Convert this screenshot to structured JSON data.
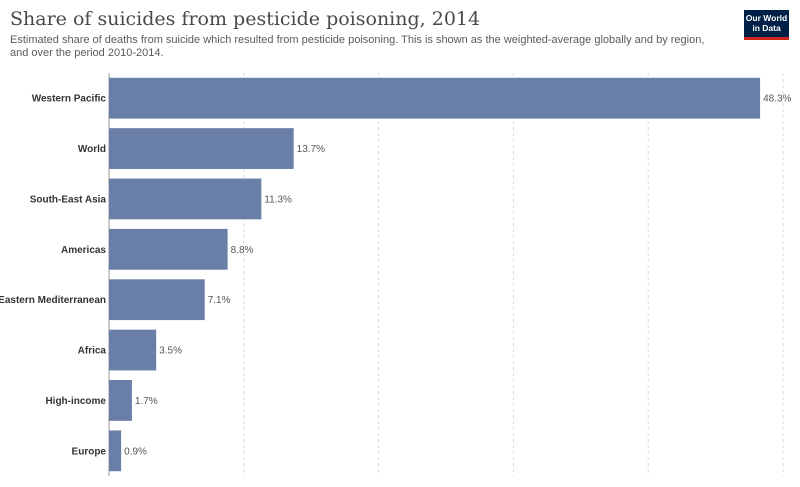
{
  "title": "Share of suicides from pesticide poisoning, 2014",
  "subtitle": "Estimated share of deaths from suicide which resulted from pesticide poisoning. This is shown as the weighted-average globally and by region, and over the period 2010-2014.",
  "logo": {
    "line1": "Our World",
    "line2": "in Data"
  },
  "colors": {
    "bar": "#6a7fa8",
    "grid": "#d8d8d8",
    "axis": "#999999"
  },
  "chart_data": {
    "type": "bar",
    "orientation": "horizontal",
    "categories": [
      "Western Pacific",
      "World",
      "South-East Asia",
      "Americas",
      "Eastern Mediterranean",
      "Africa",
      "High-income",
      "Europe"
    ],
    "values": [
      48.3,
      13.7,
      11.3,
      8.8,
      7.1,
      3.5,
      1.7,
      0.9
    ],
    "value_labels": [
      "48.3%",
      "13.7%",
      "11.3%",
      "8.8%",
      "7.1%",
      "3.5%",
      "1.7%",
      "0.9%"
    ],
    "unit": "%",
    "xlim": [
      0,
      50
    ],
    "gridlines": [
      0,
      10,
      20,
      30,
      40,
      50
    ],
    "grid": true
  }
}
